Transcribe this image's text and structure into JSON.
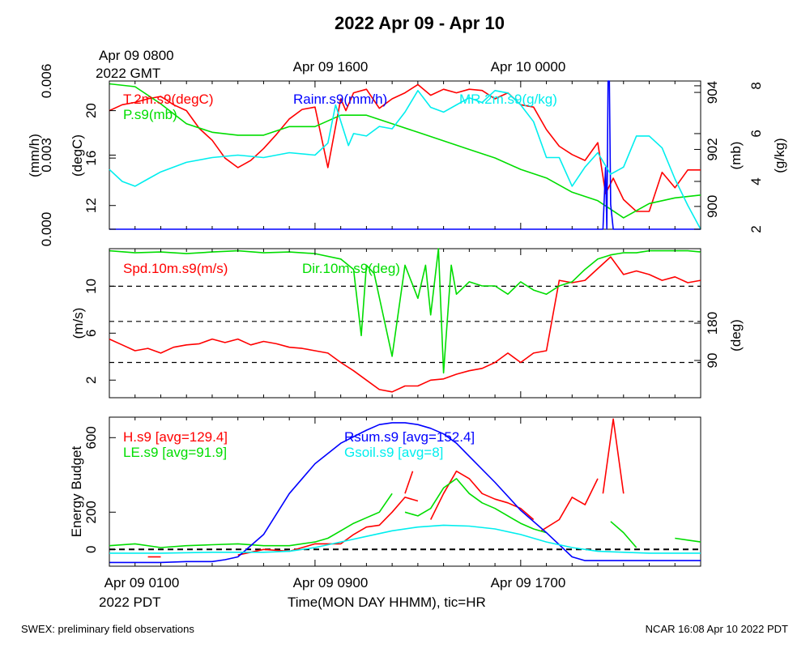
{
  "title": "2022 Apr 09 - Apr 10",
  "top_axis": {
    "start_label": "Apr 09 0800",
    "start_sublabel": "2022 GMT",
    "mid_label": "Apr 09 1600",
    "end_label": "Apr 10 0000"
  },
  "bottom_axis": {
    "start_label": "Apr 09 0100",
    "start_sublabel": "2022 PDT",
    "mid_label": "Apr 09 0900",
    "end_label": "Apr 09 1700",
    "xlabel": "Time(MON DAY HHMM), tic=HR"
  },
  "footer": {
    "left": "SWEX: preliminary field observations",
    "right": "NCAR 16:08 Apr 10 2022 PDT"
  },
  "colors": {
    "red": "#ff0000",
    "green": "#00dd00",
    "blue": "#0000ff",
    "cyan": "#00eeee",
    "black": "#000000"
  },
  "chart_data": [
    {
      "type": "line",
      "panel": "top",
      "x_unit": "hours since Apr 09 0100 PDT",
      "xlim": [
        0,
        23
      ],
      "axes": {
        "rain": {
          "label": "(mm/h)",
          "ticks": [
            "0.000",
            "0.003",
            "0.006"
          ],
          "ylim": [
            0,
            0.006
          ]
        },
        "temp": {
          "label": "(degC)",
          "ticks": [
            "12",
            "16",
            "20"
          ],
          "ylim": [
            10,
            22.5
          ]
        },
        "pres": {
          "label": "(mb)",
          "ticks": [
            "900",
            "902",
            "904"
          ],
          "ylim": [
            899.2,
            904.4
          ]
        },
        "mr": {
          "label": "(g/kg)",
          "ticks": [
            "2",
            "4",
            "6",
            "8"
          ],
          "ylim": [
            2,
            8.2
          ]
        }
      },
      "series": [
        {
          "name": "T.2m.s9(degC)",
          "color": "red",
          "axis": "temp",
          "x": [
            0,
            0.5,
            1,
            1.5,
            2,
            2.5,
            3,
            3.5,
            4,
            4.5,
            5,
            5.5,
            6,
            6.5,
            7,
            7.5,
            8,
            8.5,
            9,
            9.2,
            9.5,
            10,
            10.5,
            11,
            11.5,
            12,
            12.5,
            13,
            13.5,
            14,
            14.5,
            15,
            15.5,
            16,
            16.5,
            17,
            17.5,
            18,
            18.5,
            19,
            19.3,
            19.6,
            20,
            20.5,
            21,
            21.5,
            22,
            22.5,
            23
          ],
          "y": [
            20,
            20.5,
            20.7,
            21,
            21.2,
            20.5,
            20,
            18.5,
            17.5,
            16,
            15.2,
            15.8,
            16.8,
            18,
            19.3,
            20.1,
            20.3,
            15.2,
            21,
            20,
            21.5,
            21.8,
            20.2,
            21,
            21.5,
            22.2,
            21.3,
            21.8,
            21.5,
            21.8,
            21.7,
            21,
            21.5,
            20.5,
            20.3,
            18.4,
            17,
            16.3,
            15.8,
            17.3,
            13,
            14.3,
            12.5,
            11.5,
            11.5,
            14.8,
            13.5,
            15,
            15
          ]
        },
        {
          "name": "P.s9(mb)",
          "color": "green",
          "axis": "pres",
          "x": [
            0,
            1,
            2,
            3,
            4,
            5,
            6,
            7,
            8,
            9,
            10,
            11,
            12,
            13,
            14,
            15,
            16,
            17,
            18,
            19,
            20,
            21,
            22,
            23
          ],
          "y": [
            904.3,
            904.2,
            903.6,
            902.9,
            902.6,
            902.5,
            902.5,
            902.8,
            902.8,
            903.2,
            903.2,
            902.9,
            902.6,
            902.3,
            902,
            901.7,
            901.3,
            901,
            900.5,
            900.2,
            899.6,
            900.1,
            900.3,
            900.4
          ]
        },
        {
          "name": "Rainr.s9(mm/h)",
          "color": "blue",
          "axis": "rain",
          "x": [
            0,
            19.2,
            19.3,
            19.35,
            19.4,
            19.45,
            19.5,
            19.6,
            20,
            23
          ],
          "y": [
            0,
            0,
            0.0025,
            0,
            0.0065,
            0.0065,
            0.001,
            0,
            0,
            0
          ]
        },
        {
          "name": "MR.2m.s9(g/kg)",
          "color": "cyan",
          "axis": "mr",
          "x": [
            0,
            0.5,
            1,
            1.5,
            2,
            3,
            4,
            5,
            6,
            7,
            8,
            8.5,
            8.8,
            9.3,
            9.5,
            10,
            10.5,
            11,
            11.5,
            12,
            12.5,
            13,
            13.5,
            14,
            14.5,
            15,
            15.5,
            16,
            16.5,
            17,
            17.5,
            18,
            18.5,
            19,
            19.5,
            20,
            20.5,
            21,
            21.5,
            22,
            22.5,
            23
          ],
          "y": [
            4.5,
            4,
            3.8,
            4.1,
            4.4,
            4.8,
            5,
            5.1,
            5,
            5.2,
            5.1,
            5.6,
            7.2,
            5.5,
            6,
            5.9,
            6.3,
            6.2,
            6.9,
            7.8,
            7.1,
            6.9,
            7.2,
            7.5,
            7.3,
            7.8,
            7.7,
            7.2,
            6.5,
            5,
            5,
            3.8,
            4.6,
            5.2,
            4.3,
            4.6,
            5.9,
            5.9,
            5.4,
            4.1,
            3,
            2
          ]
        }
      ]
    },
    {
      "type": "line",
      "panel": "middle",
      "x_unit": "hours since Apr 09 0100 PDT",
      "xlim": [
        0,
        23
      ],
      "axes": {
        "speed": {
          "label": "(m/s)",
          "ticks": [
            "2",
            "6",
            "10"
          ],
          "ylim": [
            0.5,
            13.2
          ]
        },
        "dir": {
          "label": "(deg)",
          "ticks": [
            "90",
            "180"
          ],
          "ylim": [
            0,
            360
          ]
        }
      },
      "reference_lines": [
        10,
        7,
        3.5
      ],
      "series": [
        {
          "name": "Spd.10m.s9(m/s)",
          "color": "red",
          "axis": "speed",
          "x": [
            0,
            0.5,
            1,
            1.5,
            2,
            2.5,
            3,
            3.5,
            4,
            4.5,
            5,
            5.5,
            6,
            6.5,
            7,
            7.5,
            8,
            8.5,
            9,
            9.5,
            10,
            10.5,
            11,
            11.5,
            12,
            12.5,
            13,
            13.5,
            14,
            14.5,
            15,
            15.5,
            16,
            16.5,
            17,
            17.5,
            18,
            18.5,
            19,
            19.5,
            20,
            20.5,
            21,
            21.5,
            22,
            22.5,
            23
          ],
          "y": [
            5.5,
            5,
            4.5,
            4.7,
            4.3,
            4.8,
            5,
            5.1,
            5.5,
            5.2,
            5.5,
            5,
            5.3,
            5.1,
            4.8,
            4.7,
            4.5,
            4.3,
            3.5,
            2.8,
            2,
            1.2,
            1,
            1.5,
            1.5,
            2,
            2.1,
            2.5,
            2.8,
            3,
            3.5,
            4.3,
            3.5,
            4.3,
            4.5,
            10.5,
            10.3,
            10.5,
            11.5,
            12.5,
            11,
            11.3,
            11,
            10.5,
            10.8,
            10.3,
            10.5
          ]
        },
        {
          "name": "Dir.10m.s9(deg)",
          "color": "green",
          "axis": "dir",
          "x": [
            0,
            1,
            2,
            3,
            4,
            5,
            6,
            7,
            8,
            9,
            9.5,
            9.8,
            10,
            10.3,
            11,
            11.5,
            12,
            12.3,
            12.5,
            12.8,
            13,
            13.3,
            13.5,
            14,
            14.5,
            15,
            15.5,
            16,
            16.5,
            17,
            17.5,
            18,
            18.5,
            19,
            19.5,
            20,
            20.5,
            21,
            21.5,
            22,
            22.5,
            23
          ],
          "y": [
            355,
            350,
            352,
            348,
            352,
            355,
            350,
            352,
            348,
            335,
            310,
            150,
            320,
            300,
            100,
            320,
            240,
            320,
            200,
            360,
            60,
            320,
            250,
            280,
            270,
            270,
            250,
            280,
            260,
            250,
            270,
            280,
            310,
            335,
            345,
            350,
            350,
            355,
            355,
            355,
            355,
            352
          ]
        }
      ]
    },
    {
      "type": "line",
      "panel": "bottom",
      "x_unit": "hours since Apr 09 0100 PDT",
      "xlim": [
        0,
        23
      ],
      "axes": {
        "energy": {
          "label": "Energy Budget",
          "ticks": [
            "0",
            "200",
            "600"
          ],
          "ylim": [
            -90,
            710
          ]
        }
      },
      "reference_lines": [
        0
      ],
      "series": [
        {
          "name": "H.s9",
          "color": "red",
          "avg_label": "[avg=129.4]",
          "segments": [
            {
              "x": [
                1.5,
                2
              ],
              "y": [
                -40,
                -40
              ]
            },
            {
              "x": [
                5,
                5.5,
                6,
                7,
                8,
                9,
                9.5,
                10,
                10.5,
                11,
                11.5,
                12
              ],
              "y": [
                -30,
                -15,
                0,
                -10,
                30,
                30,
                80,
                120,
                130,
                200,
                280,
                260
              ]
            },
            {
              "x": [
                11.5,
                11.8
              ],
              "y": [
                300,
                420
              ]
            },
            {
              "x": [
                12.5,
                13,
                13.5,
                14,
                14.5,
                15,
                15.5,
                16,
                16.5
              ],
              "y": [
                160,
                300,
                420,
                380,
                300,
                270,
                250,
                220,
                160
              ]
            },
            {
              "x": [
                16.8,
                17.5,
                18,
                18.5,
                19
              ],
              "y": [
                100,
                160,
                280,
                240,
                380
              ]
            },
            {
              "x": [
                19.2,
                19.6,
                20
              ],
              "y": [
                300,
                700,
                300
              ]
            }
          ]
        },
        {
          "name": "LE.s9",
          "color": "green",
          "avg_label": "[avg=91.9]",
          "segments": [
            {
              "x": [
                0,
                1,
                2,
                3,
                4,
                5,
                6,
                7,
                8,
                8.5,
                9,
                9.5,
                10,
                10.5,
                11
              ],
              "y": [
                20,
                30,
                10,
                20,
                25,
                30,
                20,
                20,
                40,
                60,
                100,
                140,
                170,
                200,
                300
              ]
            },
            {
              "x": [
                11.5,
                12,
                12.5,
                13,
                13.5,
                14,
                14.5,
                15,
                16,
                16.5,
                17
              ],
              "y": [
                200,
                180,
                220,
                330,
                380,
                300,
                250,
                220,
                140,
                110,
                90
              ]
            },
            {
              "x": [
                19.5,
                20,
                20.5
              ],
              "y": [
                150,
                90,
                10
              ]
            },
            {
              "x": [
                22,
                22.5,
                23
              ],
              "y": [
                60,
                50,
                40
              ]
            }
          ]
        },
        {
          "name": "Rsum.s9",
          "color": "blue",
          "avg_label": "[avg=152.4]",
          "x": [
            0,
            2,
            3,
            4,
            4.5,
            5,
            6,
            7,
            8,
            9,
            10,
            10.5,
            11,
            11.5,
            12,
            12.5,
            13,
            13.5,
            14,
            15,
            16,
            17,
            18,
            18.5,
            19,
            20,
            21,
            22,
            23
          ],
          "y": [
            -70,
            -70,
            -65,
            -65,
            -55,
            -40,
            80,
            300,
            460,
            570,
            640,
            670,
            680,
            680,
            670,
            650,
            620,
            570,
            500,
            360,
            210,
            90,
            -40,
            -60,
            -60,
            -60,
            -60,
            -60,
            -60
          ]
        },
        {
          "name": "Gsoil.s9",
          "color": "cyan",
          "avg_label": "[avg=8]",
          "x": [
            0,
            2,
            4,
            6,
            7,
            8,
            9,
            10,
            11,
            12,
            13,
            14,
            15,
            16,
            17,
            18,
            19,
            20,
            21,
            22,
            23
          ],
          "y": [
            -20,
            -20,
            -15,
            -15,
            -10,
            10,
            40,
            70,
            100,
            120,
            130,
            125,
            110,
            80,
            40,
            10,
            -10,
            -15,
            -20,
            -20,
            -20
          ]
        }
      ]
    }
  ]
}
